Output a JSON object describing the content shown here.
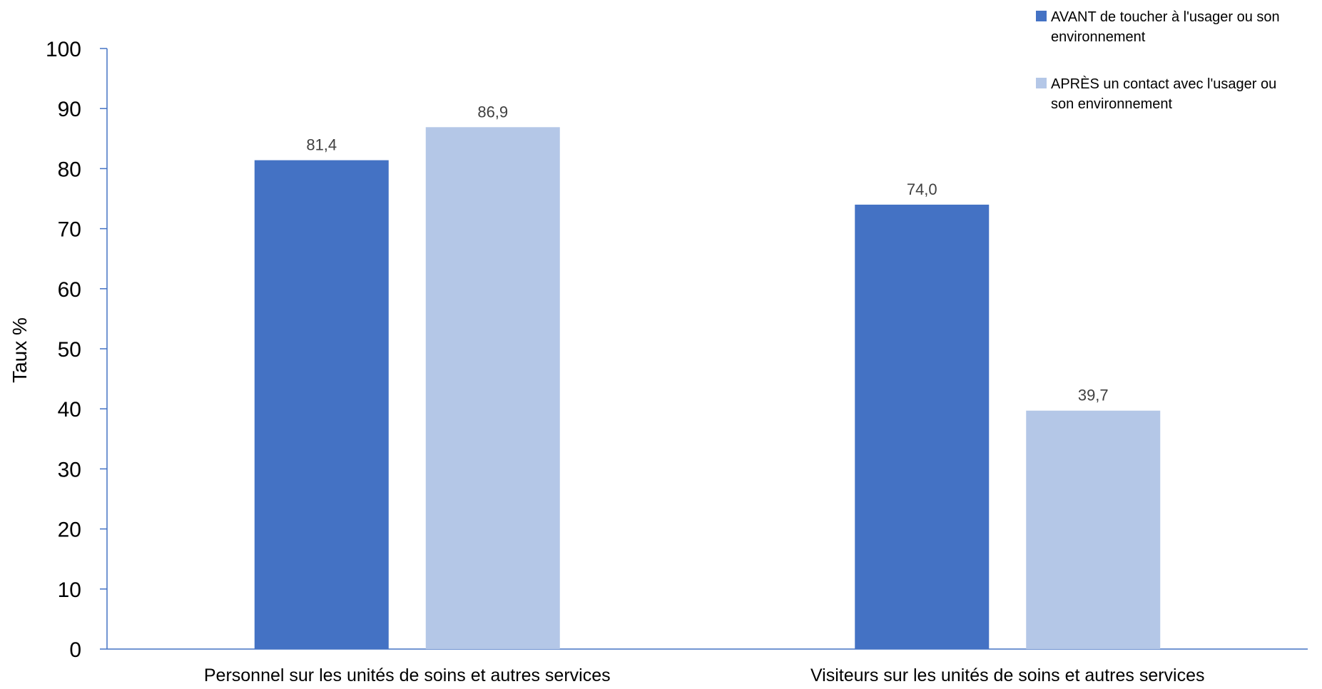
{
  "chart_data": {
    "type": "bar",
    "title": "",
    "xlabel": "",
    "ylabel": "Taux %",
    "ylim": [
      0,
      100
    ],
    "yticks": [
      0,
      10,
      20,
      30,
      40,
      50,
      60,
      70,
      80,
      90,
      100
    ],
    "categories": [
      "Personnel sur les unités de soins et autres services",
      "Visiteurs sur les unités de soins et autres services"
    ],
    "series": [
      {
        "name": "AVANT de toucher à l'usager ou son environnement",
        "legend_lines": [
          "AVANT de toucher à l'usager ou son",
          "environnement"
        ],
        "values": [
          81.4,
          74.0
        ],
        "labels": [
          "81,4",
          "74,0"
        ],
        "color": "#4472C4"
      },
      {
        "name": "APRÈS un contact avec l'usager ou son environnement",
        "legend_lines": [
          "APRÈS un contact avec l'usager ou",
          "son environnement"
        ],
        "values": [
          86.9,
          39.7
        ],
        "labels": [
          "86,9",
          "39,7"
        ],
        "color": "#B4C7E7"
      }
    ],
    "grid": false,
    "legend_position": "top-right",
    "axis_color": "#4472C4"
  }
}
